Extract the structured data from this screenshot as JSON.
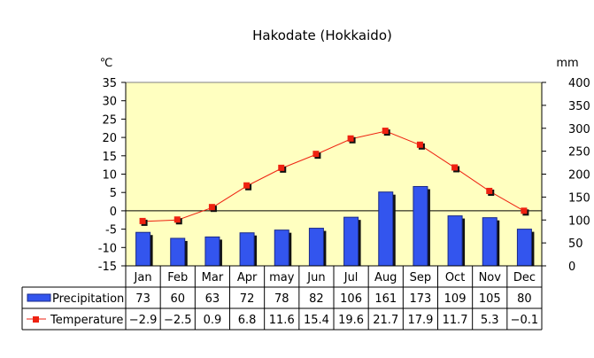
{
  "chart_data": {
    "type": "bar",
    "title": "Hakodate (Hokkaido)",
    "y_left_unit": "℃",
    "y_right_unit": "mm",
    "ylim_left": [
      -15,
      35
    ],
    "ylim_right": [
      0,
      400
    ],
    "yticks_left": [
      35,
      30,
      25,
      20,
      15,
      10,
      5,
      0,
      -5,
      -10,
      -15
    ],
    "yticks_right": [
      400,
      350,
      300,
      250,
      200,
      150,
      100,
      50,
      0
    ],
    "categories": [
      "Jan",
      "Feb",
      "Mar",
      "Apr",
      "may",
      "Jun",
      "Jul",
      "Aug",
      "Sep",
      "Oct",
      "Nov",
      "Dec"
    ],
    "series": [
      {
        "name": "Precipitation",
        "kind": "bar",
        "axis": "right",
        "color": "#3355ee",
        "values": [
          73,
          60,
          63,
          72,
          78,
          82,
          106,
          161,
          173,
          109,
          105,
          80
        ],
        "labels": [
          "73",
          "60",
          "63",
          "72",
          "78",
          "82",
          "106",
          "161",
          "173",
          "109",
          "105",
          "80"
        ]
      },
      {
        "name": "Temperature",
        "kind": "line",
        "axis": "left",
        "color": "#ee2211",
        "values": [
          -2.9,
          -2.5,
          0.9,
          6.8,
          11.6,
          15.4,
          19.6,
          21.7,
          17.9,
          11.7,
          5.3,
          -0.1
        ],
        "labels": [
          "−2.9",
          "−2.5",
          "0.9",
          "6.8",
          "11.6",
          "15.4",
          "19.6",
          "21.7",
          "17.9",
          "11.7",
          "5.3",
          "−0.1"
        ]
      }
    ],
    "plot_background": "#ffffc0",
    "grid": false,
    "legend": "data-table-left"
  }
}
